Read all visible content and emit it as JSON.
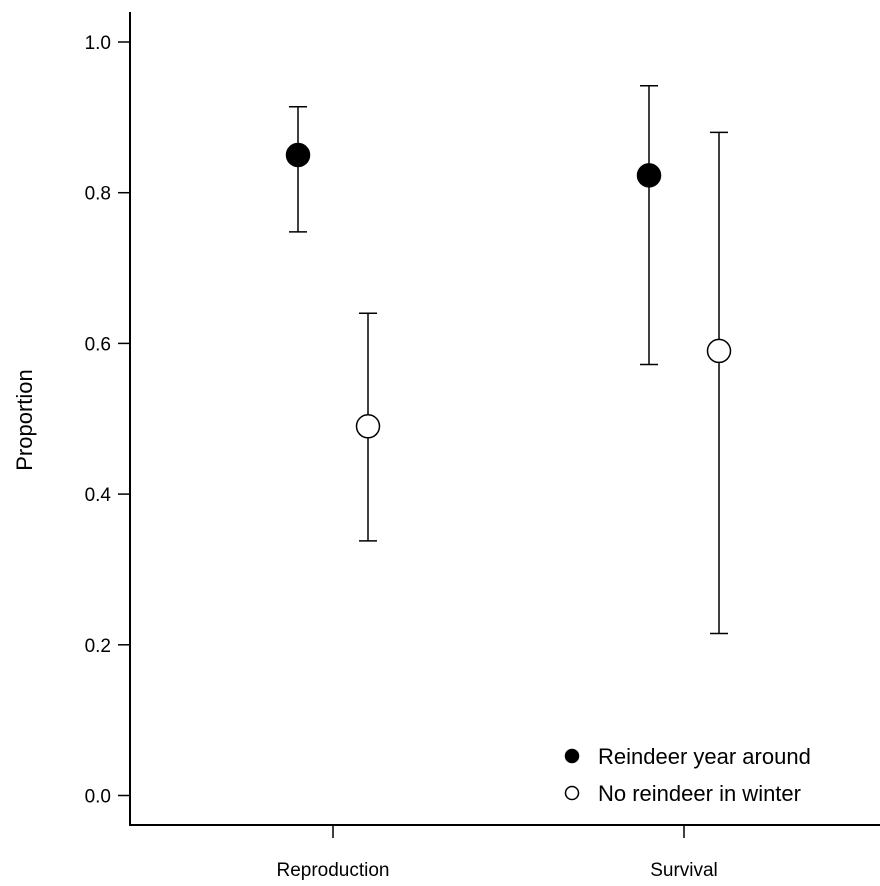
{
  "chart_data": {
    "type": "scatter",
    "categories": [
      "Reproduction",
      "Survival"
    ],
    "ylabel": "Proportion",
    "xlabel": "",
    "ylim": [
      0.0,
      1.0
    ],
    "yticks": [
      "0.0",
      "0.2",
      "0.4",
      "0.6",
      "0.8",
      "1.0"
    ],
    "legend_position": "bottom-right",
    "series": [
      {
        "name": "Reindeer year around",
        "marker": "filled-circle",
        "color": "#000000",
        "values": [
          0.85,
          0.823
        ],
        "lower": [
          0.748,
          0.572
        ],
        "upper": [
          0.914,
          0.942
        ]
      },
      {
        "name": "No reindeer in winter",
        "marker": "open-circle",
        "color": "#ffffff",
        "values": [
          0.49,
          0.59
        ],
        "lower": [
          0.338,
          0.215
        ],
        "upper": [
          0.64,
          0.88
        ]
      }
    ]
  }
}
